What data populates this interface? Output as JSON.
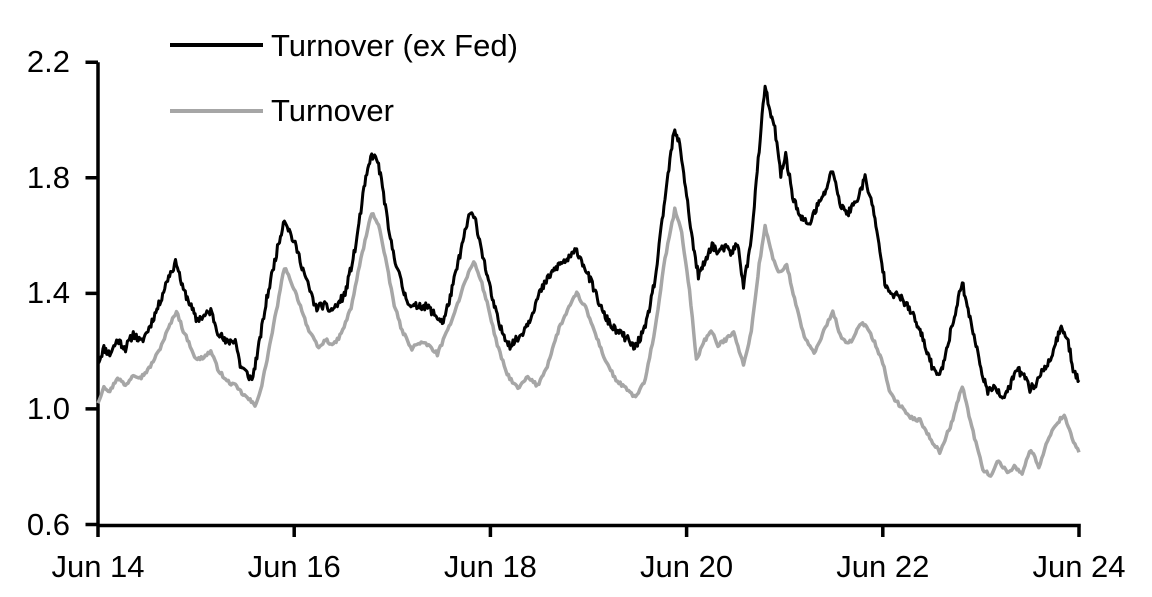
{
  "chart_data": {
    "type": "line",
    "title": "",
    "xlabel": "",
    "ylabel": "",
    "x_unit": "years since Jun 2014",
    "xlim": [
      0,
      10
    ],
    "ylim": [
      0.6,
      2.2
    ],
    "grid": false,
    "legend_position": "top-left-inside",
    "y_ticks": [
      {
        "v": 2.2,
        "label": "2.2"
      },
      {
        "v": 1.8,
        "label": "1.8"
      },
      {
        "v": 1.4,
        "label": "1.4"
      },
      {
        "v": 1.0,
        "label": "1.0"
      },
      {
        "v": 0.6,
        "label": "0.6"
      }
    ],
    "x_ticks": [
      {
        "t": 0,
        "label": "Jun 14"
      },
      {
        "t": 2,
        "label": "Jun 16"
      },
      {
        "t": 4,
        "label": "Jun 18"
      },
      {
        "t": 6,
        "label": "Jun 20"
      },
      {
        "t": 8,
        "label": "Jun 22"
      },
      {
        "t": 10,
        "label": "Jun 24"
      }
    ],
    "series": [
      {
        "name": "Turnover (ex Fed)",
        "color": "#000000",
        "width": 3,
        "points": [
          [
            0.0,
            1.16
          ],
          [
            0.06,
            1.21
          ],
          [
            0.12,
            1.19
          ],
          [
            0.2,
            1.24
          ],
          [
            0.28,
            1.21
          ],
          [
            0.36,
            1.26
          ],
          [
            0.44,
            1.23
          ],
          [
            0.52,
            1.28
          ],
          [
            0.62,
            1.36
          ],
          [
            0.72,
            1.46
          ],
          [
            0.8,
            1.51
          ],
          [
            0.86,
            1.42
          ],
          [
            0.93,
            1.37
          ],
          [
            1.0,
            1.31
          ],
          [
            1.08,
            1.32
          ],
          [
            1.15,
            1.34
          ],
          [
            1.22,
            1.27
          ],
          [
            1.3,
            1.23
          ],
          [
            1.4,
            1.24
          ],
          [
            1.45,
            1.15
          ],
          [
            1.5,
            1.13
          ],
          [
            1.57,
            1.1
          ],
          [
            1.63,
            1.2
          ],
          [
            1.72,
            1.38
          ],
          [
            1.8,
            1.51
          ],
          [
            1.9,
            1.66
          ],
          [
            1.97,
            1.6
          ],
          [
            2.03,
            1.55
          ],
          [
            2.12,
            1.45
          ],
          [
            2.22,
            1.35
          ],
          [
            2.3,
            1.36
          ],
          [
            2.37,
            1.34
          ],
          [
            2.44,
            1.36
          ],
          [
            2.52,
            1.4
          ],
          [
            2.62,
            1.55
          ],
          [
            2.72,
            1.78
          ],
          [
            2.79,
            1.88
          ],
          [
            2.85,
            1.86
          ],
          [
            2.9,
            1.77
          ],
          [
            2.97,
            1.6
          ],
          [
            3.05,
            1.49
          ],
          [
            3.12,
            1.4
          ],
          [
            3.2,
            1.35
          ],
          [
            3.28,
            1.36
          ],
          [
            3.37,
            1.35
          ],
          [
            3.45,
            1.32
          ],
          [
            3.52,
            1.3
          ],
          [
            3.6,
            1.4
          ],
          [
            3.7,
            1.55
          ],
          [
            3.79,
            1.68
          ],
          [
            3.85,
            1.65
          ],
          [
            3.93,
            1.52
          ],
          [
            4.02,
            1.38
          ],
          [
            4.1,
            1.28
          ],
          [
            4.2,
            1.22
          ],
          [
            4.3,
            1.25
          ],
          [
            4.4,
            1.31
          ],
          [
            4.5,
            1.4
          ],
          [
            4.6,
            1.46
          ],
          [
            4.7,
            1.5
          ],
          [
            4.8,
            1.52
          ],
          [
            4.88,
            1.55
          ],
          [
            4.95,
            1.5
          ],
          [
            5.05,
            1.42
          ],
          [
            5.15,
            1.33
          ],
          [
            5.25,
            1.28
          ],
          [
            5.33,
            1.26
          ],
          [
            5.4,
            1.24
          ],
          [
            5.47,
            1.21
          ],
          [
            5.58,
            1.28
          ],
          [
            5.68,
            1.45
          ],
          [
            5.78,
            1.73
          ],
          [
            5.87,
            1.96
          ],
          [
            5.93,
            1.92
          ],
          [
            6.0,
            1.74
          ],
          [
            6.06,
            1.58
          ],
          [
            6.12,
            1.46
          ],
          [
            6.19,
            1.51
          ],
          [
            6.26,
            1.57
          ],
          [
            6.32,
            1.54
          ],
          [
            6.39,
            1.56
          ],
          [
            6.45,
            1.54
          ],
          [
            6.52,
            1.57
          ],
          [
            6.58,
            1.43
          ],
          [
            6.65,
            1.56
          ],
          [
            6.73,
            1.86
          ],
          [
            6.8,
            2.12
          ],
          [
            6.86,
            2.01
          ],
          [
            6.9,
            1.97
          ],
          [
            6.96,
            1.81
          ],
          [
            7.01,
            1.88
          ],
          [
            7.08,
            1.74
          ],
          [
            7.16,
            1.66
          ],
          [
            7.25,
            1.64
          ],
          [
            7.33,
            1.7
          ],
          [
            7.4,
            1.74
          ],
          [
            7.49,
            1.83
          ],
          [
            7.57,
            1.7
          ],
          [
            7.65,
            1.68
          ],
          [
            7.73,
            1.72
          ],
          [
            7.82,
            1.8
          ],
          [
            7.89,
            1.71
          ],
          [
            7.95,
            1.59
          ],
          [
            8.02,
            1.44
          ],
          [
            8.1,
            1.4
          ],
          [
            8.2,
            1.38
          ],
          [
            8.3,
            1.33
          ],
          [
            8.4,
            1.25
          ],
          [
            8.5,
            1.15
          ],
          [
            8.58,
            1.11
          ],
          [
            8.68,
            1.25
          ],
          [
            8.81,
            1.44
          ],
          [
            8.91,
            1.28
          ],
          [
            8.99,
            1.16
          ],
          [
            9.07,
            1.05
          ],
          [
            9.14,
            1.09
          ],
          [
            9.21,
            1.03
          ],
          [
            9.3,
            1.08
          ],
          [
            9.37,
            1.14
          ],
          [
            9.44,
            1.11
          ],
          [
            9.5,
            1.07
          ],
          [
            9.57,
            1.09
          ],
          [
            9.63,
            1.14
          ],
          [
            9.7,
            1.16
          ],
          [
            9.77,
            1.24
          ],
          [
            9.83,
            1.28
          ],
          [
            9.89,
            1.23
          ],
          [
            9.94,
            1.14
          ],
          [
            10.0,
            1.1
          ]
        ]
      },
      {
        "name": "Turnover",
        "color": "#a6a6a6",
        "width": 3.5,
        "points": [
          [
            0.0,
            1.02
          ],
          [
            0.06,
            1.08
          ],
          [
            0.12,
            1.06
          ],
          [
            0.2,
            1.11
          ],
          [
            0.28,
            1.08
          ],
          [
            0.36,
            1.12
          ],
          [
            0.44,
            1.11
          ],
          [
            0.52,
            1.14
          ],
          [
            0.62,
            1.2
          ],
          [
            0.72,
            1.28
          ],
          [
            0.8,
            1.34
          ],
          [
            0.87,
            1.27
          ],
          [
            0.94,
            1.22
          ],
          [
            1.0,
            1.17
          ],
          [
            1.08,
            1.18
          ],
          [
            1.15,
            1.2
          ],
          [
            1.22,
            1.14
          ],
          [
            1.3,
            1.1
          ],
          [
            1.4,
            1.08
          ],
          [
            1.48,
            1.05
          ],
          [
            1.55,
            1.03
          ],
          [
            1.6,
            1.01
          ],
          [
            1.67,
            1.08
          ],
          [
            1.75,
            1.22
          ],
          [
            1.83,
            1.36
          ],
          [
            1.9,
            1.49
          ],
          [
            1.97,
            1.44
          ],
          [
            2.05,
            1.37
          ],
          [
            2.15,
            1.27
          ],
          [
            2.25,
            1.21
          ],
          [
            2.32,
            1.24
          ],
          [
            2.4,
            1.22
          ],
          [
            2.48,
            1.26
          ],
          [
            2.58,
            1.35
          ],
          [
            2.68,
            1.52
          ],
          [
            2.79,
            1.68
          ],
          [
            2.86,
            1.64
          ],
          [
            2.93,
            1.52
          ],
          [
            3.02,
            1.36
          ],
          [
            3.1,
            1.27
          ],
          [
            3.2,
            1.21
          ],
          [
            3.28,
            1.23
          ],
          [
            3.37,
            1.22
          ],
          [
            3.46,
            1.19
          ],
          [
            3.55,
            1.26
          ],
          [
            3.65,
            1.35
          ],
          [
            3.75,
            1.45
          ],
          [
            3.83,
            1.51
          ],
          [
            3.9,
            1.45
          ],
          [
            3.98,
            1.35
          ],
          [
            4.07,
            1.22
          ],
          [
            4.17,
            1.12
          ],
          [
            4.28,
            1.07
          ],
          [
            4.38,
            1.11
          ],
          [
            4.48,
            1.08
          ],
          [
            4.58,
            1.15
          ],
          [
            4.7,
            1.28
          ],
          [
            4.8,
            1.35
          ],
          [
            4.88,
            1.4
          ],
          [
            4.97,
            1.35
          ],
          [
            5.07,
            1.26
          ],
          [
            5.17,
            1.17
          ],
          [
            5.28,
            1.1
          ],
          [
            5.38,
            1.07
          ],
          [
            5.48,
            1.04
          ],
          [
            5.58,
            1.1
          ],
          [
            5.68,
            1.28
          ],
          [
            5.78,
            1.52
          ],
          [
            5.88,
            1.69
          ],
          [
            5.95,
            1.61
          ],
          [
            6.03,
            1.41
          ],
          [
            6.1,
            1.17
          ],
          [
            6.17,
            1.23
          ],
          [
            6.25,
            1.27
          ],
          [
            6.32,
            1.22
          ],
          [
            6.4,
            1.24
          ],
          [
            6.48,
            1.27
          ],
          [
            6.58,
            1.15
          ],
          [
            6.66,
            1.27
          ],
          [
            6.74,
            1.5
          ],
          [
            6.8,
            1.63
          ],
          [
            6.88,
            1.52
          ],
          [
            6.95,
            1.47
          ],
          [
            7.02,
            1.5
          ],
          [
            7.1,
            1.38
          ],
          [
            7.2,
            1.25
          ],
          [
            7.3,
            1.19
          ],
          [
            7.4,
            1.27
          ],
          [
            7.49,
            1.34
          ],
          [
            7.58,
            1.24
          ],
          [
            7.68,
            1.23
          ],
          [
            7.78,
            1.3
          ],
          [
            7.85,
            1.28
          ],
          [
            7.93,
            1.22
          ],
          [
            8.0,
            1.16
          ],
          [
            8.08,
            1.05
          ],
          [
            8.18,
            1.01
          ],
          [
            8.28,
            0.97
          ],
          [
            8.38,
            0.96
          ],
          [
            8.48,
            0.9
          ],
          [
            8.58,
            0.85
          ],
          [
            8.7,
            0.95
          ],
          [
            8.81,
            1.08
          ],
          [
            8.92,
            0.92
          ],
          [
            9.02,
            0.79
          ],
          [
            9.1,
            0.77
          ],
          [
            9.18,
            0.82
          ],
          [
            9.27,
            0.78
          ],
          [
            9.34,
            0.8
          ],
          [
            9.42,
            0.78
          ],
          [
            9.51,
            0.86
          ],
          [
            9.59,
            0.8
          ],
          [
            9.68,
            0.89
          ],
          [
            9.77,
            0.95
          ],
          [
            9.85,
            0.98
          ],
          [
            9.93,
            0.9
          ],
          [
            10.0,
            0.85
          ]
        ]
      }
    ]
  }
}
